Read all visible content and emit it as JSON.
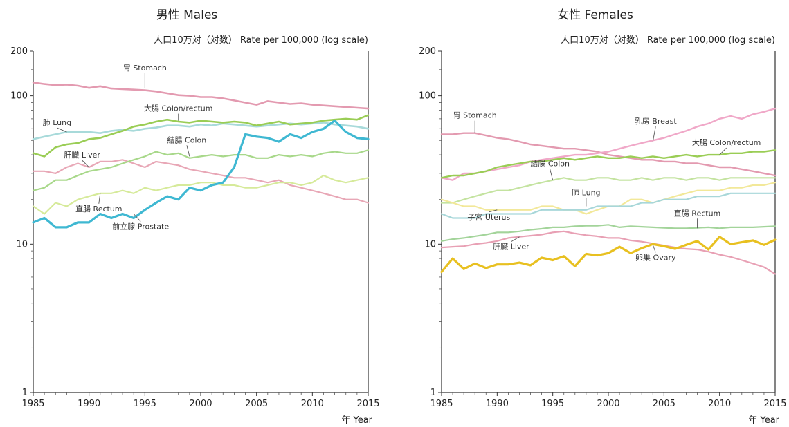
{
  "chart_data": [
    {
      "type": "line",
      "title": "男性  Males",
      "ylabel": "人口10万対（対数）  Rate per 100,000 (log scale)",
      "xlabel": "年  Year",
      "yscale": "log",
      "ylim": [
        1,
        200
      ],
      "xlim": [
        1985,
        2015
      ],
      "yticks": [
        "1",
        "10",
        "100",
        "200"
      ],
      "xticks": [
        "1985",
        "1990",
        "1995",
        "2000",
        "2005",
        "2010",
        "2015"
      ],
      "grid": false,
      "x": [
        1985,
        1986,
        1987,
        1988,
        1989,
        1990,
        1991,
        1992,
        1993,
        1994,
        1995,
        1996,
        1997,
        1998,
        1999,
        2000,
        2001,
        2002,
        2003,
        2004,
        2005,
        2006,
        2007,
        2008,
        2009,
        2010,
        2011,
        2012,
        2013,
        2014,
        2015
      ],
      "series": [
        {
          "name": "胃 Stomach",
          "color": "#e39ab0",
          "width": 2.6,
          "values": [
            123,
            120,
            118,
            119,
            117,
            113,
            116,
            112,
            111,
            110,
            109,
            107,
            104,
            101,
            100,
            98,
            98,
            96,
            93,
            90,
            87,
            92,
            90,
            88,
            89,
            87,
            86,
            85,
            84,
            83,
            82
          ]
        },
        {
          "name": "肺 Lung",
          "color": "#a8dada",
          "width": 2.6,
          "values": [
            51,
            53,
            55,
            57,
            57,
            57,
            56,
            58,
            59,
            58,
            60,
            61,
            63,
            63,
            62,
            64,
            63,
            65,
            64,
            63,
            62,
            63,
            64,
            65,
            64,
            65,
            66,
            64,
            63,
            62,
            60
          ]
        },
        {
          "name": "大腸 Colon/rectum",
          "color": "#9acd55",
          "width": 2.6,
          "values": [
            41,
            39,
            45,
            47,
            48,
            51,
            52,
            55,
            58,
            62,
            64,
            67,
            69,
            67,
            66,
            68,
            67,
            66,
            67,
            66,
            63,
            65,
            67,
            64,
            65,
            66,
            68,
            69,
            70,
            69,
            74
          ]
        },
        {
          "name": "肝臓 Liver",
          "color": "#e8a7b6",
          "width": 2.2,
          "values": [
            31,
            31,
            30,
            33,
            35,
            33,
            36,
            36,
            37,
            35,
            33,
            36,
            35,
            34,
            32,
            31,
            30,
            29,
            28,
            28,
            27,
            26,
            27,
            25,
            24,
            23,
            22,
            21,
            20,
            20,
            19
          ]
        },
        {
          "name": "結腸 Colon",
          "color": "#a8d88a",
          "width": 2.2,
          "values": [
            23,
            24,
            27,
            27,
            29,
            31,
            32,
            33,
            35,
            37,
            39,
            42,
            40,
            41,
            38,
            39,
            40,
            39,
            40,
            40,
            38,
            38,
            40,
            39,
            40,
            39,
            41,
            42,
            41,
            41,
            43
          ]
        },
        {
          "name": "直腸 Rectum",
          "color": "#d6ea9a",
          "width": 2.2,
          "values": [
            18,
            16,
            19,
            18,
            20,
            21,
            22,
            22,
            23,
            22,
            24,
            23,
            24,
            25,
            25,
            26,
            26,
            25,
            25,
            24,
            24,
            25,
            26,
            26,
            25,
            26,
            29,
            27,
            26,
            27,
            28
          ]
        },
        {
          "name": "前立腺 Prostate",
          "color": "#3fb8d2",
          "width": 3.2,
          "values": [
            14,
            15,
            13,
            13,
            14,
            14,
            16,
            15,
            16,
            15,
            17,
            19,
            21,
            20,
            24,
            23,
            25,
            26,
            33,
            55,
            53,
            52,
            49,
            55,
            52,
            57,
            60,
            68,
            57,
            52,
            51
          ]
        }
      ],
      "annotations": [
        {
          "text": "胃 Stomach",
          "x": 1995,
          "y": 112
        },
        {
          "text": "肺 Lung",
          "x": 1988,
          "y": 57
        },
        {
          "text": "大腸 Colon/rectum",
          "x": 1998,
          "y": 68
        },
        {
          "text": "肝臓 Liver",
          "x": 1990,
          "y": 33
        },
        {
          "text": "結腸 Colon",
          "x": 1999,
          "y": 39
        },
        {
          "text": "直腸 Rectum",
          "x": 1991,
          "y": 22
        },
        {
          "text": "前立腺 Prostate",
          "x": 1994,
          "y": 16
        }
      ]
    },
    {
      "type": "line",
      "title": "女性  Females",
      "ylabel": "人口10万対（対数）  Rate per 100,000 (log scale)",
      "xlabel": "年  Year",
      "yscale": "log",
      "ylim": [
        1,
        200
      ],
      "xlim": [
        1985,
        2015
      ],
      "yticks": [
        "1",
        "10",
        "100",
        "200"
      ],
      "xticks": [
        "1985",
        "1990",
        "1995",
        "2000",
        "2005",
        "2010",
        "2015"
      ],
      "grid": false,
      "x": [
        1985,
        1986,
        1987,
        1988,
        1989,
        1990,
        1991,
        1992,
        1993,
        1994,
        1995,
        1996,
        1997,
        1998,
        1999,
        2000,
        2001,
        2002,
        2003,
        2004,
        2005,
        2006,
        2007,
        2008,
        2009,
        2010,
        2011,
        2012,
        2013,
        2014,
        2015
      ],
      "series": [
        {
          "name": "胃 Stomach",
          "color": "#e39ab0",
          "width": 2.4,
          "values": [
            55,
            55,
            56,
            56,
            54,
            52,
            51,
            49,
            47,
            46,
            45,
            44,
            44,
            43,
            42,
            40,
            39,
            38,
            37,
            37,
            36,
            36,
            35,
            35,
            34,
            33,
            33,
            32,
            31,
            30,
            29
          ]
        },
        {
          "name": "乳房 Breast",
          "color": "#f0a8c8",
          "width": 2.4,
          "values": [
            28,
            27,
            30,
            30,
            31,
            32,
            33,
            34,
            36,
            37,
            38,
            39,
            40,
            40,
            41,
            42,
            44,
            46,
            48,
            50,
            52,
            55,
            58,
            62,
            65,
            70,
            73,
            70,
            75,
            78,
            82
          ]
        },
        {
          "name": "大腸 Colon/rectum",
          "color": "#9acd55",
          "width": 2.4,
          "values": [
            28,
            29,
            29,
            30,
            31,
            33,
            34,
            35,
            36,
            36,
            37,
            38,
            37,
            38,
            39,
            38,
            38,
            39,
            38,
            39,
            38,
            39,
            40,
            39,
            40,
            40,
            41,
            41,
            42,
            42,
            43
          ]
        },
        {
          "name": "結腸 Colon",
          "color": "#c4e3a0",
          "width": 2.2,
          "values": [
            19,
            19,
            20,
            21,
            22,
            23,
            23,
            24,
            25,
            26,
            27,
            28,
            27,
            27,
            28,
            28,
            27,
            27,
            28,
            27,
            28,
            28,
            27,
            28,
            28,
            27,
            28,
            28,
            28,
            28,
            28
          ]
        },
        {
          "name": "子宮 Uterus",
          "color": "#f2e899",
          "width": 2.2,
          "values": [
            20,
            19,
            18,
            18,
            17,
            17,
            17,
            17,
            17,
            18,
            18,
            17,
            17,
            16,
            17,
            18,
            18,
            20,
            20,
            19,
            20,
            21,
            22,
            23,
            23,
            23,
            24,
            24,
            25,
            25,
            26
          ]
        },
        {
          "name": "肺 Lung",
          "color": "#a8d7d9",
          "width": 2.2,
          "values": [
            16,
            15,
            15,
            15,
            16,
            16,
            16,
            16,
            16,
            17,
            17,
            17,
            17,
            17,
            18,
            18,
            18,
            18,
            19,
            19,
            20,
            20,
            20,
            21,
            21,
            21,
            22,
            22,
            22,
            22,
            22
          ]
        },
        {
          "name": "直腸 Rectum",
          "color": "#a3d49a",
          "width": 2.2,
          "values": [
            10.5,
            10.8,
            11,
            11.3,
            11.6,
            12,
            12,
            12.2,
            12.5,
            12.7,
            13,
            13,
            13.2,
            13.3,
            13.3,
            13.5,
            13,
            13.2,
            13.1,
            13,
            12.9,
            12.8,
            12.8,
            12.9,
            13,
            12.8,
            13,
            13,
            13,
            13.1,
            13.2
          ]
        },
        {
          "name": "肝臓 Liver",
          "color": "#e8a0b4",
          "width": 2.2,
          "values": [
            9.5,
            9.6,
            9.7,
            10,
            10.2,
            10.5,
            11,
            11.2,
            11.4,
            11.6,
            12,
            12.2,
            11.8,
            11.5,
            11.3,
            11,
            11,
            10.6,
            10.4,
            10.1,
            9.8,
            9.5,
            9.3,
            9.2,
            8.9,
            8.5,
            8.2,
            7.8,
            7.4,
            7,
            6.3
          ]
        },
        {
          "name": "卵巣 Ovary",
          "color": "#e8c020",
          "width": 3.2,
          "values": [
            6.5,
            8,
            6.8,
            7.4,
            6.9,
            7.3,
            7.3,
            7.5,
            7.2,
            8.1,
            7.8,
            8.3,
            7.1,
            8.6,
            8.4,
            8.7,
            9.6,
            8.7,
            9.4,
            10,
            9.7,
            9.3,
            9.9,
            10.5,
            9.2,
            11.2,
            10,
            10.3,
            10.6,
            9.9,
            10.7
          ]
        }
      ],
      "annotations": [
        {
          "text": "胃 Stomach",
          "x": 1988,
          "y": 56
        },
        {
          "text": "乳房 Breast",
          "x": 2004,
          "y": 49
        },
        {
          "text": "大腸 Colon/rectum",
          "x": 2010,
          "y": 40
        },
        {
          "text": "結腸 Colon",
          "x": 1995,
          "y": 27
        },
        {
          "text": "子宮 Uterus",
          "x": 1990,
          "y": 17
        },
        {
          "text": "肺 Lung",
          "x": 1998,
          "y": 18
        },
        {
          "text": "直腸 Rectum",
          "x": 2008,
          "y": 12.8
        },
        {
          "text": "肝臓 Liver",
          "x": 1992,
          "y": 11.2
        },
        {
          "text": "卵巣 Ovary",
          "x": 2004,
          "y": 9.9
        }
      ]
    }
  ]
}
